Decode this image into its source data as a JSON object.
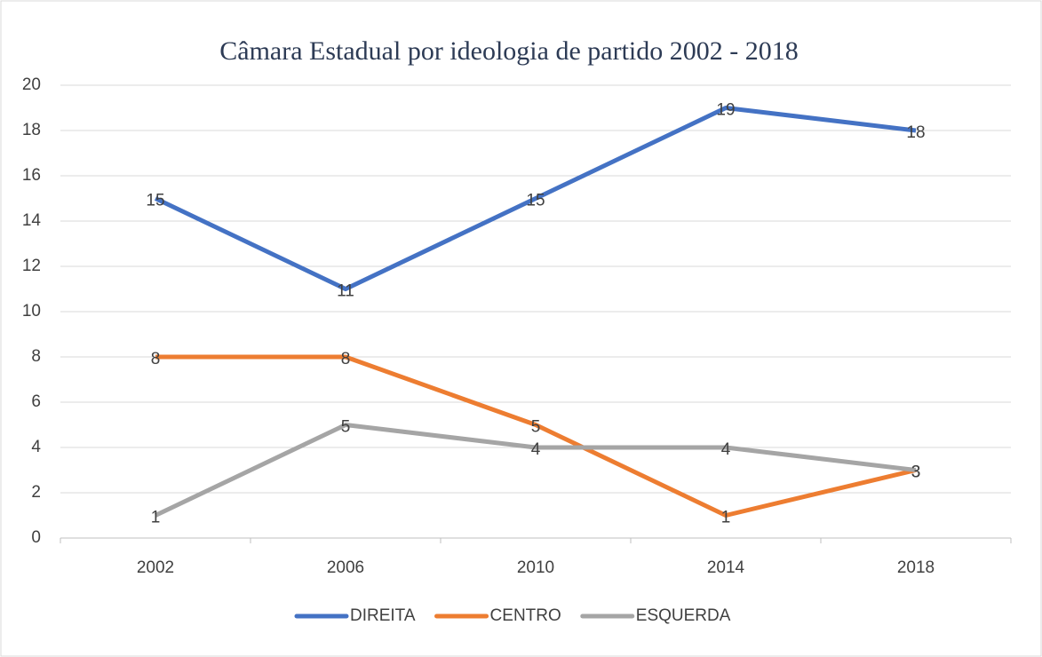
{
  "chart_data": {
    "type": "line",
    "title": "Câmara Estadual por ideologia de partido  2002 - 2018",
    "categories": [
      "2002",
      "2006",
      "2010",
      "2014",
      "2018"
    ],
    "series": [
      {
        "name": "DIREITA",
        "color": "#4472c4",
        "values": [
          15,
          11,
          15,
          19,
          18
        ]
      },
      {
        "name": "CENTRO",
        "color": "#ed7d31",
        "values": [
          8,
          8,
          5,
          1,
          3
        ]
      },
      {
        "name": "ESQUERDA",
        "color": "#a5a5a5",
        "values": [
          1,
          5,
          4,
          4,
          3
        ]
      }
    ],
    "ylim": [
      0,
      20
    ],
    "yticks": [
      0,
      2,
      4,
      6,
      8,
      10,
      12,
      14,
      16,
      18,
      20
    ],
    "grid": true,
    "legend": "bottom",
    "data_labels": true
  }
}
